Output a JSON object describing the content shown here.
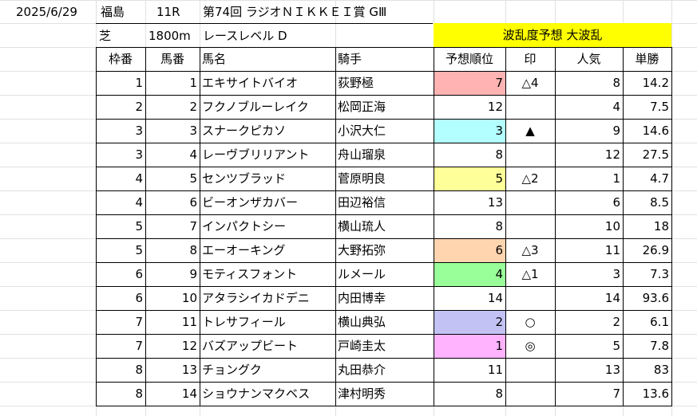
{
  "race_info": {
    "date": "2025/6/29",
    "venue": "福島",
    "race_no": "11R",
    "race_name": "第74回 ラジオＮＩＫＫＥＩ賞 GⅢ",
    "surface": "芝",
    "distance": "1800m",
    "level": "レースレベル D",
    "upset_prediction": "波乱度予想 大波乱"
  },
  "colors": {
    "banner_yellow": "#ffff00",
    "rank_1": "#ffb3b3",
    "rank_2": "#b3ffff",
    "rank_3": "#ffff99",
    "rank_4": "#ffd5b0",
    "rank_5": "#99ff99",
    "rank_6": "#c2c2f5",
    "rank_7": "#ffb3ff"
  },
  "table": {
    "headers": [
      "枠番",
      "馬番",
      "馬名",
      "騎手",
      "予想順位",
      "印",
      "人気",
      "単勝"
    ],
    "rows": [
      {
        "waku": "1",
        "umaban": "1",
        "horse": "エキサイトバイオ",
        "jockey": "荻野極",
        "rank": "7",
        "mark": "△4",
        "pop": "8",
        "odds": "14.2",
        "rank_color": "#ffb3b3"
      },
      {
        "waku": "2",
        "umaban": "2",
        "horse": "フクノブルーレイク",
        "jockey": "松岡正海",
        "rank": "12",
        "mark": "",
        "pop": "4",
        "odds": "7.5",
        "rank_color": ""
      },
      {
        "waku": "3",
        "umaban": "3",
        "horse": "スナークピカソ",
        "jockey": "小沢大仁",
        "rank": "3",
        "mark": "▲",
        "pop": "9",
        "odds": "14.6",
        "rank_color": "#b3ffff"
      },
      {
        "waku": "3",
        "umaban": "4",
        "horse": "レーヴブリリアント",
        "jockey": "舟山瑠泉",
        "rank": "8",
        "mark": "",
        "pop": "12",
        "odds": "27.5",
        "rank_color": ""
      },
      {
        "waku": "4",
        "umaban": "5",
        "horse": "センツブラッド",
        "jockey": "菅原明良",
        "rank": "5",
        "mark": "△2",
        "pop": "1",
        "odds": "4.7",
        "rank_color": "#ffff99"
      },
      {
        "waku": "4",
        "umaban": "6",
        "horse": "ビーオンザカバー",
        "jockey": "田辺裕信",
        "rank": "13",
        "mark": "",
        "pop": "6",
        "odds": "8.5",
        "rank_color": ""
      },
      {
        "waku": "5",
        "umaban": "7",
        "horse": "インパクトシー",
        "jockey": "横山琉人",
        "rank": "8",
        "mark": "",
        "pop": "10",
        "odds": "18",
        "rank_color": ""
      },
      {
        "waku": "5",
        "umaban": "8",
        "horse": "エーオーキング",
        "jockey": "大野拓弥",
        "rank": "6",
        "mark": "△3",
        "pop": "11",
        "odds": "26.9",
        "rank_color": "#ffd5b0"
      },
      {
        "waku": "6",
        "umaban": "9",
        "horse": "モティスフォント",
        "jockey": "ルメール",
        "rank": "4",
        "mark": "△1",
        "pop": "3",
        "odds": "7.3",
        "rank_color": "#99ff99"
      },
      {
        "waku": "6",
        "umaban": "10",
        "horse": "アタラシイカドデニ",
        "jockey": "内田博幸",
        "rank": "14",
        "mark": "",
        "pop": "14",
        "odds": "93.6",
        "rank_color": ""
      },
      {
        "waku": "7",
        "umaban": "11",
        "horse": "トレサフィール",
        "jockey": "横山典弘",
        "rank": "2",
        "mark": "○",
        "pop": "2",
        "odds": "6.1",
        "rank_color": "#c2c2f5"
      },
      {
        "waku": "7",
        "umaban": "12",
        "horse": "バズアップビート",
        "jockey": "戸崎圭太",
        "rank": "1",
        "mark": "◎",
        "pop": "5",
        "odds": "7.8",
        "rank_color": "#ffb3ff"
      },
      {
        "waku": "8",
        "umaban": "13",
        "horse": "チョングク",
        "jockey": "丸田恭介",
        "rank": "11",
        "mark": "",
        "pop": "13",
        "odds": "83",
        "rank_color": ""
      },
      {
        "waku": "8",
        "umaban": "14",
        "horse": "ショウナンマクベス",
        "jockey": "津村明秀",
        "rank": "8",
        "mark": "",
        "pop": "7",
        "odds": "13.6",
        "rank_color": ""
      }
    ]
  }
}
